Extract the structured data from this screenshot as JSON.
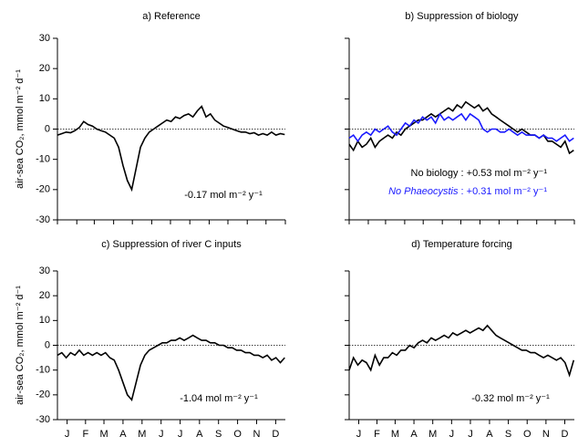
{
  "chart_data": [
    {
      "type": "line",
      "title": "a) Reference",
      "ylabel": "air-sea CO₂, mmol m⁻² d⁻¹",
      "annotation": "-0.17 mol m⁻² y⁻¹",
      "ylim": [
        -30,
        30
      ],
      "yticks": [
        -30,
        -20,
        -10,
        0,
        10,
        20,
        30
      ],
      "ytick_labels": true,
      "xlim": [
        0,
        365
      ],
      "xticks": [
        0,
        31,
        59,
        90,
        120,
        151,
        181,
        212,
        243,
        273,
        304,
        334,
        365
      ],
      "xtick_labels": false,
      "zero_line": true,
      "x": [
        0,
        7,
        14,
        21,
        28,
        35,
        42,
        49,
        56,
        63,
        70,
        77,
        84,
        91,
        98,
        105,
        112,
        119,
        126,
        133,
        140,
        147,
        154,
        161,
        168,
        175,
        182,
        189,
        196,
        203,
        210,
        217,
        224,
        231,
        238,
        245,
        252,
        259,
        266,
        273,
        280,
        287,
        294,
        301,
        308,
        315,
        322,
        329,
        336,
        343,
        350,
        357,
        364
      ],
      "series": [
        {
          "color": "#000000",
          "values": [
            -2,
            -1.5,
            -1,
            -1.2,
            -0.5,
            0.5,
            2.5,
            1.5,
            1,
            0,
            -0.5,
            -1,
            -2,
            -3,
            -6,
            -12,
            -17,
            -20,
            -13,
            -6,
            -3,
            -1,
            0,
            1,
            2,
            3,
            2.5,
            4,
            3.5,
            4.5,
            5,
            4,
            6,
            7.5,
            4,
            5,
            3,
            2,
            1,
            0.5,
            0,
            -0.5,
            -1,
            -1,
            -1.5,
            -1.2,
            -2,
            -1.5,
            -2,
            -1,
            -2,
            -1.5,
            -1.8
          ]
        }
      ]
    },
    {
      "type": "line",
      "title": "b) Suppression of biology",
      "ylim": [
        -30,
        30
      ],
      "yticks": [
        -30,
        -20,
        -10,
        0,
        10,
        20,
        30
      ],
      "ytick_labels": false,
      "xlim": [
        0,
        365
      ],
      "xticks": [
        0,
        31,
        59,
        90,
        120,
        151,
        181,
        212,
        243,
        273,
        304,
        334,
        365
      ],
      "xtick_labels": false,
      "zero_line": true,
      "x": [
        0,
        7,
        14,
        21,
        28,
        35,
        42,
        49,
        56,
        63,
        70,
        77,
        84,
        91,
        98,
        105,
        112,
        119,
        126,
        133,
        140,
        147,
        154,
        161,
        168,
        175,
        182,
        189,
        196,
        203,
        210,
        217,
        224,
        231,
        238,
        245,
        252,
        259,
        266,
        273,
        280,
        287,
        294,
        301,
        308,
        315,
        322,
        329,
        336,
        343,
        350,
        357,
        364
      ],
      "series": [
        {
          "name": "No biology",
          "flux_label": " : +0.53 mol m⁻² y⁻¹",
          "italic": false,
          "color": "#000000",
          "values": [
            -5,
            -7,
            -4,
            -6,
            -5,
            -3,
            -6,
            -4,
            -3,
            -2,
            -3,
            -1,
            -2,
            0,
            1,
            2,
            3,
            3,
            4,
            5,
            4,
            5,
            6,
            7,
            6,
            8,
            7,
            9,
            8,
            7,
            8,
            6,
            7,
            5,
            4,
            3,
            2,
            1,
            0,
            -1,
            0,
            -1,
            -2,
            -2,
            -3,
            -2,
            -4,
            -4,
            -5,
            -6,
            -4,
            -8,
            -7
          ]
        },
        {
          "name": "No Phaeocystis",
          "flux_label": " : +0.31 mol m⁻² y⁻¹",
          "italic": true,
          "color": "#1a1aff",
          "values": [
            -3,
            -2,
            -4,
            -2,
            -1,
            -2,
            0,
            -1,
            0,
            1,
            -1,
            -2,
            0,
            2,
            1,
            3,
            2,
            4,
            3,
            4,
            2,
            5,
            3,
            4,
            3,
            4,
            5,
            3,
            5,
            4,
            3,
            0,
            -1,
            0,
            0,
            -1,
            -1,
            0,
            -1,
            -2,
            -1,
            -2,
            -2,
            -2,
            -3,
            -2,
            -3,
            -3,
            -4,
            -3,
            -2,
            -4,
            -3
          ]
        }
      ]
    },
    {
      "type": "line",
      "title": "c) Suppression of river C inputs",
      "ylabel": "air-sea CO₂, mmol m⁻² d⁻¹",
      "annotation": "-1.04 mol m⁻² y⁻¹",
      "ylim": [
        -30,
        30
      ],
      "yticks": [
        -30,
        -20,
        -10,
        0,
        10,
        20,
        30
      ],
      "ytick_labels": true,
      "xlim": [
        0,
        365
      ],
      "xticks": [
        {
          "value": 15.5,
          "label": "J"
        },
        {
          "value": 45,
          "label": "F"
        },
        {
          "value": 74.5,
          "label": "M"
        },
        {
          "value": 105,
          "label": "A"
        },
        {
          "value": 135.5,
          "label": "M"
        },
        {
          "value": 166,
          "label": "J"
        },
        {
          "value": 196.5,
          "label": "J"
        },
        {
          "value": 227.5,
          "label": "A"
        },
        {
          "value": 258,
          "label": "S"
        },
        {
          "value": 288.5,
          "label": "O"
        },
        {
          "value": 319,
          "label": "N"
        },
        {
          "value": 349.5,
          "label": "D"
        }
      ],
      "xtick_labels": true,
      "zero_line": true,
      "x": [
        0,
        7,
        14,
        21,
        28,
        35,
        42,
        49,
        56,
        63,
        70,
        77,
        84,
        91,
        98,
        105,
        112,
        119,
        126,
        133,
        140,
        147,
        154,
        161,
        168,
        175,
        182,
        189,
        196,
        203,
        210,
        217,
        224,
        231,
        238,
        245,
        252,
        259,
        266,
        273,
        280,
        287,
        294,
        301,
        308,
        315,
        322,
        329,
        336,
        343,
        350,
        357,
        364
      ],
      "series": [
        {
          "color": "#000000",
          "values": [
            -4,
            -3,
            -5,
            -3,
            -4,
            -2,
            -4,
            -3,
            -4,
            -3,
            -4,
            -3,
            -5,
            -6,
            -10,
            -15,
            -20,
            -22,
            -15,
            -8,
            -4,
            -2,
            -1,
            0,
            1,
            1,
            2,
            2,
            3,
            2,
            3,
            4,
            3,
            2,
            2,
            1,
            1,
            0,
            0,
            -1,
            -1,
            -2,
            -2,
            -3,
            -3,
            -4,
            -4,
            -5,
            -4,
            -6,
            -5,
            -7,
            -5
          ]
        }
      ]
    },
    {
      "type": "line",
      "title": "d) Temperature forcing",
      "annotation": "-0.32 mol m⁻² y⁻¹",
      "ylim": [
        -30,
        30
      ],
      "yticks": [
        -30,
        -20,
        -10,
        0,
        10,
        20,
        30
      ],
      "ytick_labels": false,
      "xlim": [
        0,
        365
      ],
      "xticks": [
        {
          "value": 15.5,
          "label": "J"
        },
        {
          "value": 45,
          "label": "F"
        },
        {
          "value": 74.5,
          "label": "M"
        },
        {
          "value": 105,
          "label": "A"
        },
        {
          "value": 135.5,
          "label": "M"
        },
        {
          "value": 166,
          "label": "J"
        },
        {
          "value": 196.5,
          "label": "J"
        },
        {
          "value": 227.5,
          "label": "A"
        },
        {
          "value": 258,
          "label": "S"
        },
        {
          "value": 288.5,
          "label": "O"
        },
        {
          "value": 319,
          "label": "N"
        },
        {
          "value": 349.5,
          "label": "D"
        }
      ],
      "xtick_labels": true,
      "zero_line": true,
      "x": [
        0,
        7,
        14,
        21,
        28,
        35,
        42,
        49,
        56,
        63,
        70,
        77,
        84,
        91,
        98,
        105,
        112,
        119,
        126,
        133,
        140,
        147,
        154,
        161,
        168,
        175,
        182,
        189,
        196,
        203,
        210,
        217,
        224,
        231,
        238,
        245,
        252,
        259,
        266,
        273,
        280,
        287,
        294,
        301,
        308,
        315,
        322,
        329,
        336,
        343,
        350,
        357,
        364
      ],
      "series": [
        {
          "color": "#000000",
          "values": [
            -10,
            -5,
            -8,
            -6,
            -7,
            -10,
            -4,
            -8,
            -5,
            -5,
            -3,
            -4,
            -2,
            -2,
            0,
            -1,
            1,
            2,
            1,
            3,
            2,
            3,
            4,
            3,
            5,
            4,
            5,
            6,
            5,
            6,
            7,
            6,
            8,
            6,
            4,
            3,
            2,
            1,
            0,
            -1,
            -2,
            -2,
            -3,
            -3,
            -4,
            -5,
            -4,
            -5,
            -6,
            -5,
            -7,
            -12,
            -6
          ]
        }
      ]
    }
  ]
}
